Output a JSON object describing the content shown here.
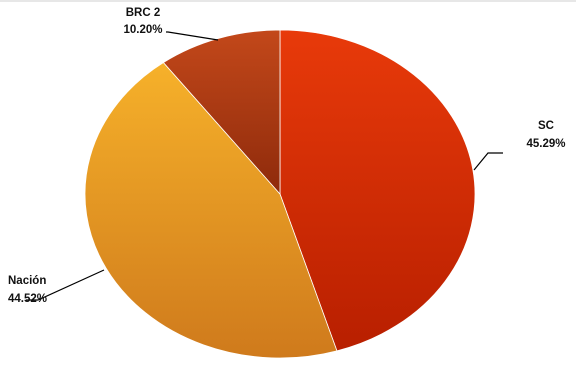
{
  "chart_data": {
    "type": "pie",
    "title": "",
    "slices": [
      {
        "label": "SC",
        "value_label": "45.29%",
        "value": 45.29,
        "color_start": "#e83a0a",
        "color_end": "#b81f00"
      },
      {
        "label": "Nación",
        "value_label": "44.52%",
        "value": 44.52,
        "color_start": "#f6b12a",
        "color_end": "#cf7a1c"
      },
      {
        "label": "BRC 2",
        "value_label": "10.20%",
        "value": 10.2,
        "color_start": "#c3481a",
        "color_end": "#8e2a0b"
      }
    ],
    "start_angle_deg": 0,
    "direction": "clockwise",
    "legend": "none",
    "labels_outside_with_leader_lines": true
  }
}
